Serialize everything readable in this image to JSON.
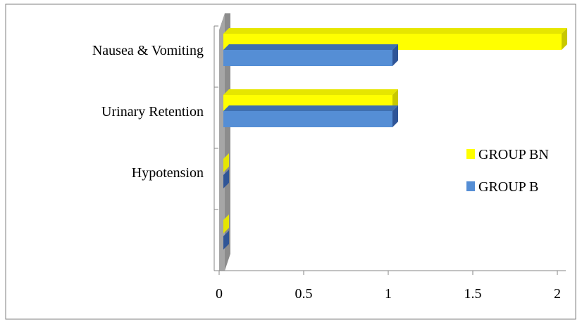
{
  "chart_data": {
    "type": "bar",
    "orientation": "horizontal",
    "style": "3d",
    "categories": [
      "Nausea & Vomiting",
      "Urinary Retention",
      "Hypotension",
      ""
    ],
    "series": [
      {
        "name": "GROUP BN",
        "values": [
          2,
          1,
          0,
          0
        ],
        "color": "#ffff00",
        "side_color": "#c8c800",
        "top_color": "#e6e600"
      },
      {
        "name": "GROUP B",
        "values": [
          1,
          1,
          0,
          0
        ],
        "color": "#558ed5",
        "side_color": "#2f5597",
        "top_color": "#3f6fb0"
      }
    ],
    "x_ticks": [
      "0",
      "0.5",
      "1",
      "1.5",
      "2"
    ],
    "xlim": [
      0,
      2
    ],
    "grid": false,
    "legend_position": "right",
    "wall_color": "#8c8c8c",
    "frame_color": "#7f7f7f"
  }
}
